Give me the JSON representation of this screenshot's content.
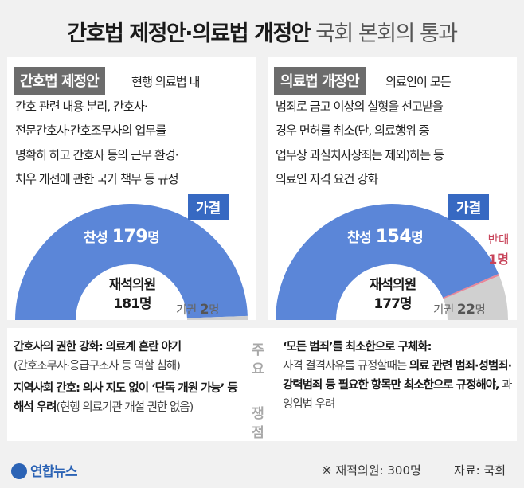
{
  "title": {
    "bold": "간호법 제정안·의료법 개정안",
    "light": "국회 본회의 통과"
  },
  "left": {
    "tag": "간호법 제정안",
    "desc_lines": [
      "현행 의료법 내",
      "간호 관련 내용 분리, 간호사·",
      "전문간호사·간호조무사의 업무를",
      "명확히 하고 간호사 등의 근무 환경·",
      "처우 개선에 관한 국가 책무 등 규정"
    ],
    "pass_label": "가결",
    "yes_text": "찬성",
    "yes_num": "179",
    "yes_unit": "명",
    "present_label": "재석의원",
    "present_num": "181명",
    "abstain_label": "기권",
    "abstain_num": "2",
    "abstain_unit": "명"
  },
  "right": {
    "tag": "의료법 개정안",
    "desc_lines": [
      "의료인이 모든",
      "범죄로 금고 이상의 실형을 선고받을",
      "경우 면허를 취소(단, 의료행위 중",
      "업무상 과실치사상죄는 제외)하는 등",
      "의료인 자격 요건 강화"
    ],
    "pass_label": "가결",
    "yes_text": "찬성",
    "yes_num": "154",
    "yes_unit": "명",
    "against_label": "반대",
    "against_num": "1명",
    "present_label": "재석의원",
    "present_num": "177명",
    "abstain_label": "기권",
    "abstain_num": "22",
    "abstain_unit": "명"
  },
  "chart_data": [
    {
      "type": "pie",
      "categories": [
        "찬성",
        "반대",
        "기권"
      ],
      "values": [
        179,
        0,
        2
      ],
      "total": 181,
      "colors": [
        "#5b86d8",
        "#e8889a",
        "#d0d0d0"
      ]
    },
    {
      "type": "pie",
      "categories": [
        "찬성",
        "반대",
        "기권"
      ],
      "values": [
        154,
        1,
        22
      ],
      "total": 177,
      "colors": [
        "#5b86d8",
        "#e8889a",
        "#d0d0d0"
      ]
    }
  ],
  "issues": {
    "center_top": "주요",
    "center_bottom": "쟁점",
    "left": [
      {
        "b": "간호사의 권한 강화: 의료계 혼란 야기",
        "sub": "(간호조무사·응급구조사 등 역할 침해)"
      },
      {
        "b": "지역사회 간호: 의사 지도 없이 ‘단독 개원 가능’ 등 해석 우려",
        "sub": "(현행 의료기관 개설 권한 없음)"
      }
    ],
    "right_head": "‘모든 범죄’를 최소한으로 구체화:",
    "right_body_1": "자격 결격사유를 규정할때는 ",
    "right_body_b": "의료 관련 범죄·성범죄·강력범죄 등 필요한 항목만 최소한으로 규정해야,",
    "right_body_2": " 과잉입법 우려"
  },
  "footer": {
    "logo": "연합뉴스",
    "note": "※ 재적의원: 300명",
    "source": "자료: 국회"
  }
}
